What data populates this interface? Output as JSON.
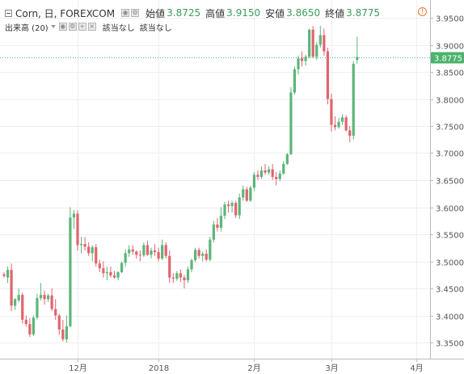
{
  "header": {
    "symbol": "Corn, 日, FOREXCOM",
    "open_label": "始値",
    "open_value": "3.8725",
    "high_label": "高値",
    "high_value": "3.9150",
    "low_label": "安値",
    "low_value": "3.8650",
    "close_label": "終値",
    "close_value": "3.8775",
    "volume_label": "出来高 (20)",
    "na1": "該当なし",
    "na2": "該当なし",
    "warning_glyph": "!"
  },
  "colors": {
    "up": "#5cb57a",
    "down": "#e0646e",
    "grid": "#eeeeee",
    "last_line": "#3bb3a6",
    "badge": "#4bb36b"
  },
  "chart_data": {
    "type": "candlestick",
    "title": "Corn, 日, FOREXCOM",
    "ylim": [
      3.33,
      3.96
    ],
    "yticks": [
      "3.3500",
      "3.4000",
      "3.4500",
      "3.5000",
      "3.5500",
      "3.6000",
      "3.6500",
      "3.7000",
      "3.7500",
      "3.8000",
      "3.8500",
      "3.9000",
      "3.9500"
    ],
    "xticks": [
      {
        "label": "12月",
        "index": 20
      },
      {
        "label": "2018",
        "index": 42
      },
      {
        "label": "2月",
        "index": 68
      },
      {
        "label": "3月",
        "index": 89
      },
      {
        "label": "4月",
        "index": 112
      }
    ],
    "last_value": "3.8775",
    "grid": true,
    "candles": [
      [
        3.476,
        3.48,
        3.47,
        3.473
      ],
      [
        3.47,
        3.49,
        3.46,
        3.484
      ],
      [
        3.484,
        3.496,
        3.408,
        3.418
      ],
      [
        3.418,
        3.432,
        3.41,
        3.43
      ],
      [
        3.428,
        3.45,
        3.424,
        3.438
      ],
      [
        3.438,
        3.442,
        3.385,
        3.392
      ],
      [
        3.392,
        3.4,
        3.38,
        3.384
      ],
      [
        3.384,
        3.395,
        3.36,
        3.365
      ],
      [
        3.365,
        3.4,
        3.362,
        3.396
      ],
      [
        3.396,
        3.44,
        3.392,
        3.432
      ],
      [
        3.432,
        3.46,
        3.428,
        3.438
      ],
      [
        3.438,
        3.446,
        3.42,
        3.43
      ],
      [
        3.43,
        3.44,
        3.425,
        3.437
      ],
      [
        3.437,
        3.45,
        3.408,
        3.412
      ],
      [
        3.412,
        3.43,
        3.392,
        3.4
      ],
      [
        3.4,
        3.403,
        3.364,
        3.374
      ],
      [
        3.374,
        3.392,
        3.352,
        3.356
      ],
      [
        3.356,
        3.4,
        3.35,
        3.38
      ],
      [
        3.38,
        3.6,
        3.378,
        3.581
      ],
      [
        3.581,
        3.595,
        3.56,
        3.588
      ],
      [
        3.588,
        3.594,
        3.52,
        3.53
      ],
      [
        3.53,
        3.545,
        3.515,
        3.532
      ],
      [
        3.532,
        3.545,
        3.52,
        3.527
      ],
      [
        3.527,
        3.535,
        3.51,
        3.515
      ],
      [
        3.515,
        3.53,
        3.5,
        3.526
      ],
      [
        3.526,
        3.532,
        3.49,
        3.496
      ],
      [
        3.496,
        3.503,
        3.48,
        3.487
      ],
      [
        3.487,
        3.5,
        3.47,
        3.478
      ],
      [
        3.478,
        3.49,
        3.465,
        3.48
      ],
      [
        3.48,
        3.49,
        3.47,
        3.474
      ],
      [
        3.474,
        3.482,
        3.468,
        3.47
      ],
      [
        3.47,
        3.482,
        3.465,
        3.48
      ],
      [
        3.48,
        3.5,
        3.478,
        3.497
      ],
      [
        3.497,
        3.522,
        3.49,
        3.515
      ],
      [
        3.515,
        3.53,
        3.508,
        3.522
      ],
      [
        3.522,
        3.53,
        3.512,
        3.518
      ],
      [
        3.518,
        3.52,
        3.505,
        3.512
      ],
      [
        3.512,
        3.52,
        3.5,
        3.511
      ],
      [
        3.511,
        3.535,
        3.508,
        3.53
      ],
      [
        3.53,
        3.538,
        3.51,
        3.512
      ],
      [
        3.512,
        3.525,
        3.505,
        3.52
      ],
      [
        3.52,
        3.532,
        3.51,
        3.517
      ],
      [
        3.517,
        3.525,
        3.5,
        3.505
      ],
      [
        3.505,
        3.54,
        3.502,
        3.53
      ],
      [
        3.53,
        3.535,
        3.505,
        3.51
      ],
      [
        3.51,
        3.52,
        3.46,
        3.47
      ],
      [
        3.47,
        3.478,
        3.46,
        3.468
      ],
      [
        3.468,
        3.482,
        3.464,
        3.478
      ],
      [
        3.478,
        3.485,
        3.462,
        3.47
      ],
      [
        3.47,
        3.475,
        3.45,
        3.465
      ],
      [
        3.465,
        3.49,
        3.46,
        3.485
      ],
      [
        3.485,
        3.505,
        3.48,
        3.502
      ],
      [
        3.502,
        3.525,
        3.498,
        3.521
      ],
      [
        3.521,
        3.525,
        3.505,
        3.51
      ],
      [
        3.51,
        3.518,
        3.5,
        3.514
      ],
      [
        3.514,
        3.522,
        3.5,
        3.503
      ],
      [
        3.503,
        3.545,
        3.5,
        3.54
      ],
      [
        3.54,
        3.575,
        3.535,
        3.568
      ],
      [
        3.568,
        3.58,
        3.555,
        3.562
      ],
      [
        3.562,
        3.6,
        3.555,
        3.584
      ],
      [
        3.584,
        3.61,
        3.578,
        3.605
      ],
      [
        3.605,
        3.612,
        3.59,
        3.602
      ],
      [
        3.602,
        3.612,
        3.59,
        3.608
      ],
      [
        3.608,
        3.612,
        3.58,
        3.585
      ],
      [
        3.585,
        3.625,
        3.578,
        3.618
      ],
      [
        3.618,
        3.64,
        3.612,
        3.633
      ],
      [
        3.633,
        3.638,
        3.61,
        3.612
      ],
      [
        3.612,
        3.64,
        3.61,
        3.636
      ],
      [
        3.636,
        3.665,
        3.63,
        3.66
      ],
      [
        3.66,
        3.668,
        3.65,
        3.656
      ],
      [
        3.656,
        3.675,
        3.652,
        3.668
      ],
      [
        3.668,
        3.68,
        3.66,
        3.664
      ],
      [
        3.664,
        3.676,
        3.66,
        3.67
      ],
      [
        3.67,
        3.68,
        3.65,
        3.656
      ],
      [
        3.656,
        3.665,
        3.64,
        3.652
      ],
      [
        3.652,
        3.668,
        3.648,
        3.662
      ],
      [
        3.662,
        3.685,
        3.66,
        3.68
      ],
      [
        3.68,
        3.7,
        3.678,
        3.698
      ],
      [
        3.698,
        3.822,
        3.696,
        3.812
      ],
      [
        3.812,
        3.86,
        3.808,
        3.855
      ],
      [
        3.855,
        3.88,
        3.845,
        3.875
      ],
      [
        3.875,
        3.888,
        3.86,
        3.87
      ],
      [
        3.87,
        3.882,
        3.862,
        3.878
      ],
      [
        3.878,
        3.93,
        3.875,
        3.928
      ],
      [
        3.928,
        3.935,
        3.875,
        3.878
      ],
      [
        3.878,
        3.905,
        3.872,
        3.9
      ],
      [
        3.9,
        3.935,
        3.895,
        3.918
      ],
      [
        3.918,
        3.93,
        3.88,
        3.888
      ],
      [
        3.888,
        3.895,
        3.79,
        3.8
      ],
      [
        3.8,
        3.81,
        3.74,
        3.752
      ],
      [
        3.752,
        3.768,
        3.742,
        3.748
      ],
      [
        3.748,
        3.765,
        3.745,
        3.758
      ],
      [
        3.758,
        3.772,
        3.752,
        3.766
      ],
      [
        3.766,
        3.77,
        3.74,
        3.742
      ],
      [
        3.742,
        3.75,
        3.72,
        3.732
      ],
      [
        3.732,
        3.87,
        3.725,
        3.865
      ],
      [
        3.872,
        3.915,
        3.865,
        3.8775
      ]
    ]
  }
}
